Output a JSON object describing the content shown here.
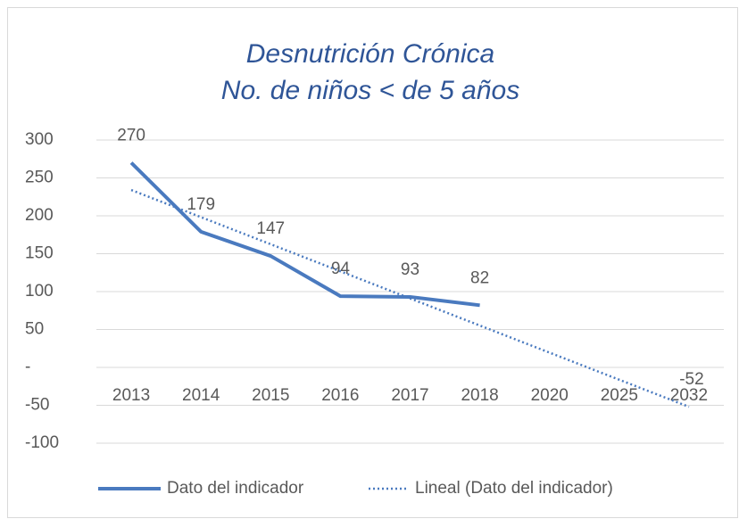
{
  "chart_data": {
    "type": "line",
    "title": [
      "Desnutrición Crónica",
      "No. de niños < de 5 años"
    ],
    "categories": [
      "2013",
      "2014",
      "2015",
      "2016",
      "2017",
      "2018",
      "2020",
      "2025",
      "2032"
    ],
    "series": [
      {
        "name": "Dato del indicador",
        "color": "#4a7abf",
        "style": "solid",
        "values": [
          270,
          179,
          147,
          94,
          93,
          82,
          null,
          null,
          null
        ]
      },
      {
        "name": "Lineal (Dato del indicador)",
        "color": "#4a7abf",
        "style": "dotted",
        "values": [
          234,
          198.25,
          162.5,
          126.75,
          91,
          55.25,
          19.5,
          -16.25,
          -52
        ],
        "value_labels": [
          null,
          null,
          null,
          null,
          null,
          null,
          null,
          null,
          "-52"
        ]
      }
    ],
    "ylim": [
      -100,
      300
    ],
    "yticks": [
      -100,
      -50,
      {
        "value": 0,
        "label": "-"
      },
      50,
      100,
      150,
      200,
      250,
      300
    ],
    "grid": true,
    "legend": "bottom"
  }
}
